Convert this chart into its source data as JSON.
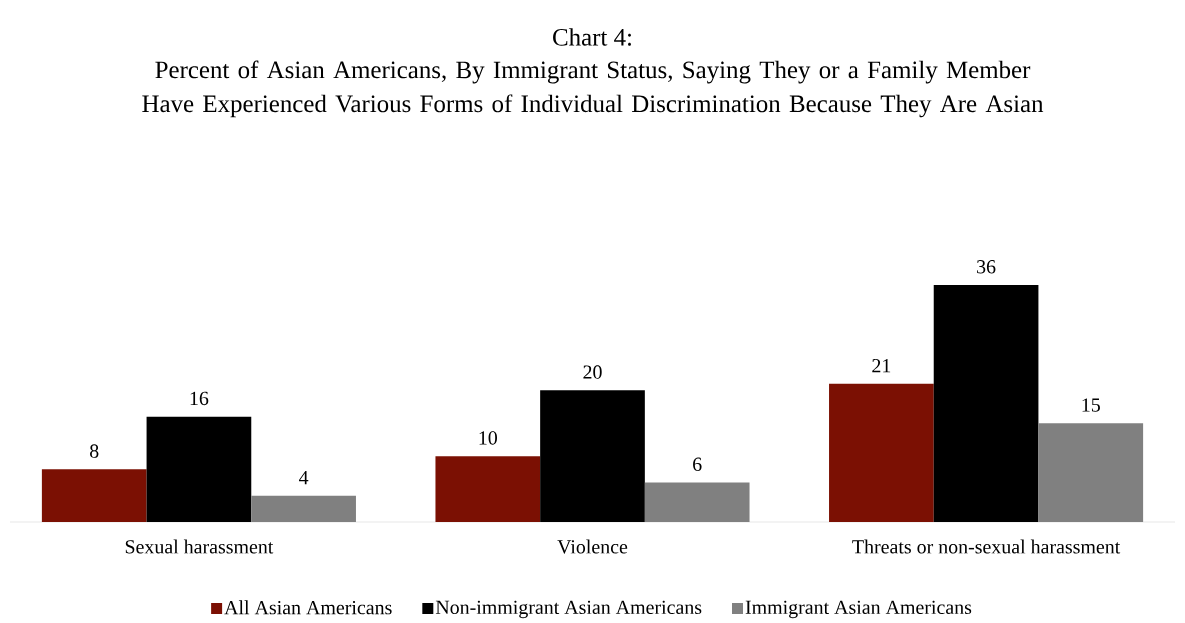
{
  "chart_data": {
    "type": "bar",
    "title": "Chart 4:",
    "subtitle": "Percent of Asian Americans, By Immigrant Status, Saying They or a Family Member Have Experienced Various Forms of Individual Discrimination Because They Are Asian",
    "categories": [
      "Sexual harassment",
      "Violence",
      "Threats or non-sexual harassment"
    ],
    "series": [
      {
        "name": "All Asian Americans",
        "color": "#7b1003",
        "values": [
          8,
          10,
          21
        ]
      },
      {
        "name": "Non-immigrant Asian Americans",
        "color": "#000000",
        "values": [
          16,
          20,
          36
        ]
      },
      {
        "name": "Immigrant Asian Americans",
        "color": "#808080",
        "values": [
          4,
          6,
          15
        ]
      }
    ],
    "data_labels": true,
    "legend": "bottom"
  }
}
